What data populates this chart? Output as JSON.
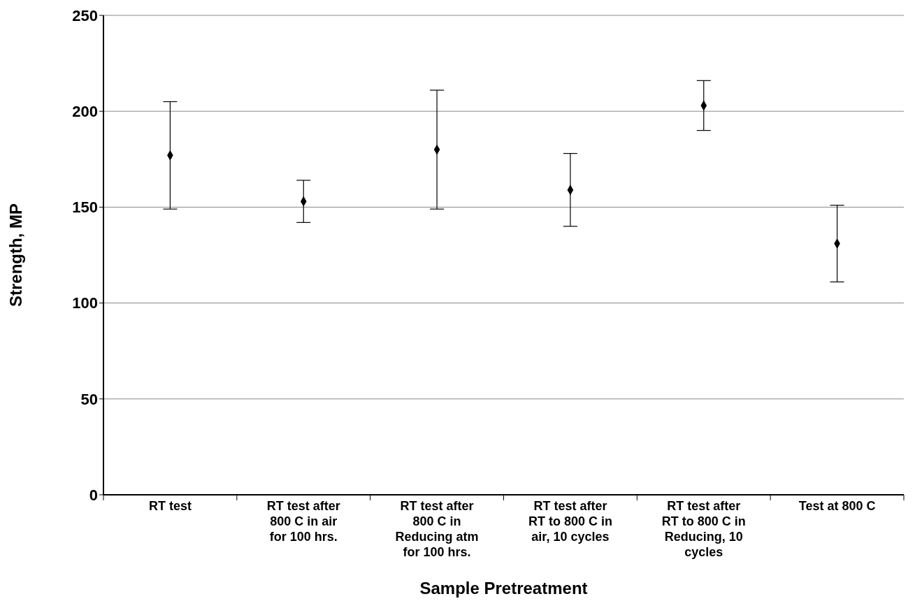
{
  "chart_data": {
    "type": "scatter",
    "xlabel": "Sample Pretreatment",
    "ylabel": "Strength, MP",
    "categories": [
      "RT test",
      "RT test after 800 C in air for 100 hrs.",
      "RT test after 800 C in Reducing atm for 100 hrs.",
      "RT test after RT to 800 C in air, 10 cycles",
      "RT test after RT to 800 C in Reducing, 10 cycles",
      "Test at 800 C"
    ],
    "values": [
      177,
      153,
      180,
      159,
      203,
      131
    ],
    "errors": [
      [
        149,
        205
      ],
      [
        142,
        164
      ],
      [
        149,
        211
      ],
      [
        140,
        178
      ],
      [
        190,
        216
      ],
      [
        111,
        151
      ]
    ],
    "color": "#000000",
    "marker": "diamond",
    "ylim": [
      0,
      250
    ],
    "yticks": [
      0,
      50,
      100,
      150,
      200,
      250
    ],
    "grid": "y"
  }
}
